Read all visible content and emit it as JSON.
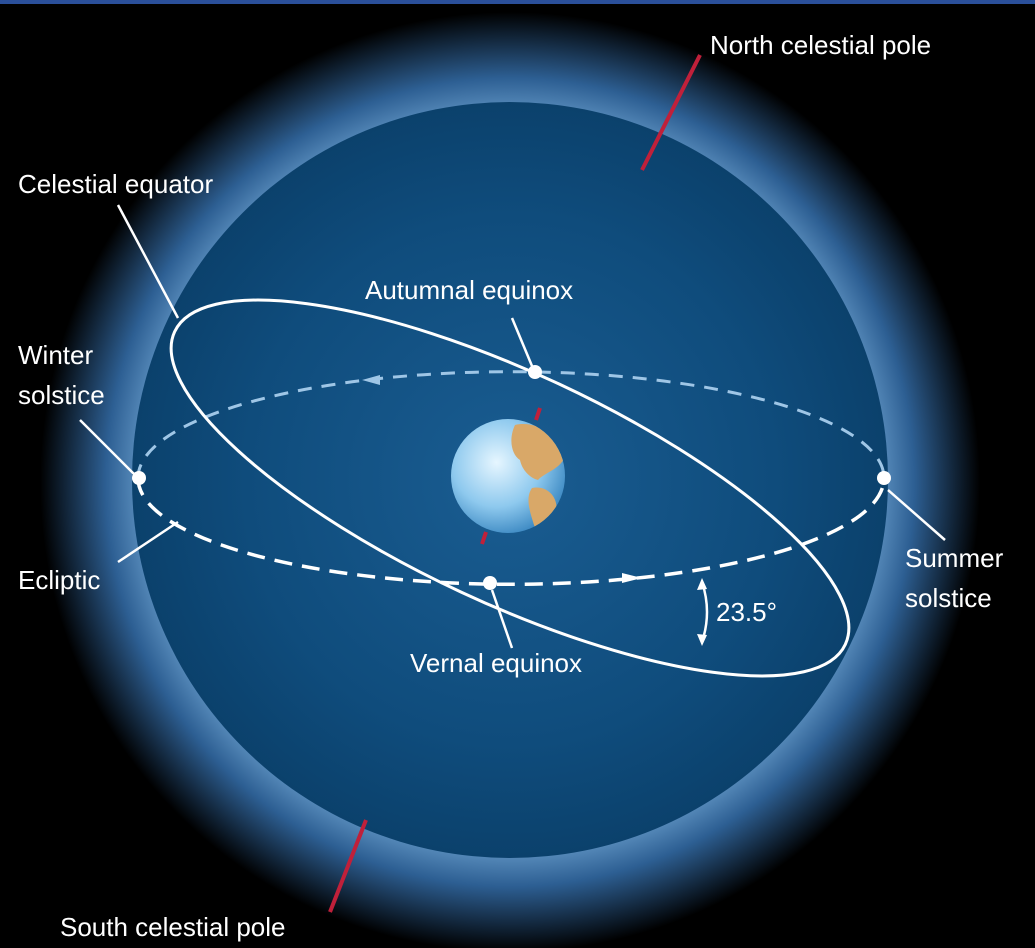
{
  "labels": {
    "north_pole": "North celestial pole",
    "celestial_equator": "Celestial equator",
    "autumnal_equinox": "Autumnal equinox",
    "winter_solstice": [
      "Winter",
      "solstice"
    ],
    "ecliptic": "Ecliptic",
    "vernal_equinox": "Vernal equinox",
    "summer_solstice": [
      "Summer",
      "solstice"
    ],
    "angle": "23.5°",
    "south_pole": "South celestial pole"
  }
}
